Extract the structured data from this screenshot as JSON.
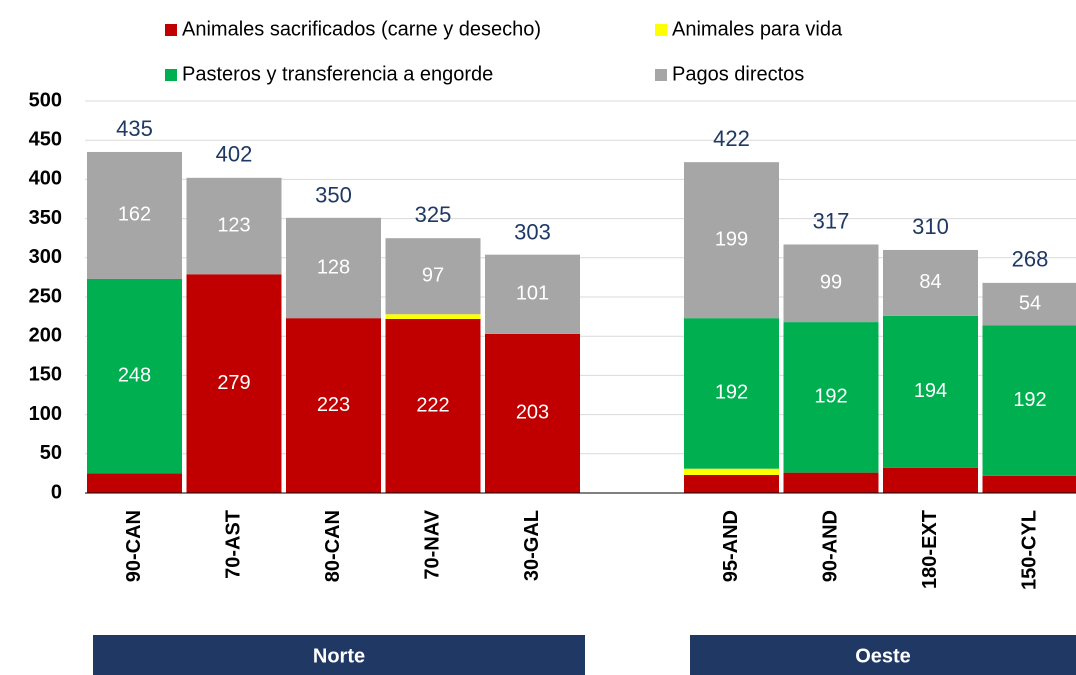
{
  "chart_data": {
    "type": "stacked_bar",
    "categories": [
      "90-CAN",
      "70-AST",
      "80-CAN",
      "70-NAV",
      "30-GAL",
      null,
      "95-AND",
      "90-AND",
      "180-EXT",
      "150-CYL"
    ],
    "series": [
      {
        "name": "Animales sacrificados (carne y desecho)",
        "color": "#c00000",
        "values": [
          25,
          279,
          223,
          222,
          203,
          null,
          23,
          26,
          32,
          22
        ]
      },
      {
        "name": "Animales para vida",
        "color": "#ffff00",
        "values": [
          0,
          0,
          0,
          6,
          0,
          null,
          8,
          0,
          0,
          0
        ]
      },
      {
        "name": "Pasteros y transferencia a engorde",
        "color": "#00b050",
        "values": [
          248,
          0,
          0,
          0,
          0,
          null,
          192,
          192,
          194,
          192
        ]
      },
      {
        "name": "Pagos directos",
        "color": "#a6a6a6",
        "values": [
          162,
          123,
          128,
          97,
          101,
          null,
          199,
          99,
          84,
          54
        ]
      }
    ],
    "totals": [
      435,
      402,
      350,
      325,
      303,
      null,
      422,
      317,
      310,
      268
    ],
    "groups": [
      "Norte",
      "Oeste"
    ],
    "ylim": [
      0,
      500
    ],
    "yticks": [
      0,
      50,
      100,
      150,
      200,
      250,
      300,
      350,
      400,
      450,
      500
    ],
    "grid": true
  }
}
